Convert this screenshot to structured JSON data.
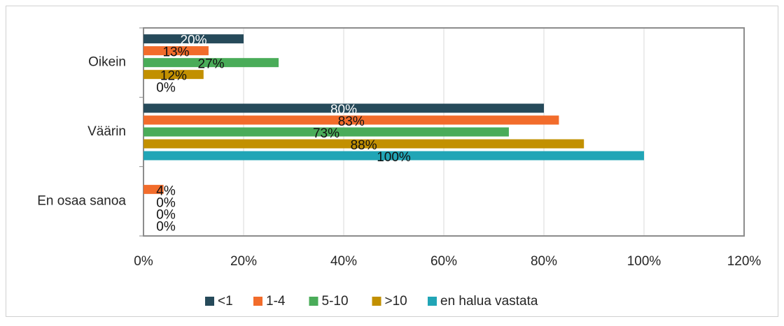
{
  "chart_data": {
    "type": "bar",
    "orientation": "horizontal",
    "categories": [
      "Oikein",
      "Väärin",
      "En osaa sanoa"
    ],
    "series": [
      {
        "name": "<1",
        "color": "#264a5a",
        "values": [
          20,
          80,
          null
        ],
        "value_labels": [
          "20%",
          "80%",
          null
        ]
      },
      {
        "name": "1-4",
        "color": "#f26c2b",
        "values": [
          13,
          83,
          4
        ],
        "value_labels": [
          "13%",
          "83%",
          "4%"
        ]
      },
      {
        "name": "5-10",
        "color": "#4aac59",
        "values": [
          27,
          73,
          0
        ],
        "value_labels": [
          "27%",
          "73%",
          "0%"
        ]
      },
      {
        "name": ">10",
        "color": "#c29000",
        "values": [
          12,
          88,
          0
        ],
        "value_labels": [
          "12%",
          "88%",
          "0%"
        ]
      },
      {
        "name": "en halua vastata",
        "color": "#21a5b6",
        "values": [
          0,
          100,
          0
        ],
        "value_labels": [
          "0%",
          "100%",
          "0%"
        ]
      }
    ],
    "xlim": [
      0,
      120
    ],
    "xticks": [
      {
        "value": 0,
        "label": "0%"
      },
      {
        "value": 20,
        "label": "20%"
      },
      {
        "value": 40,
        "label": "40%"
      },
      {
        "value": 60,
        "label": "60%"
      },
      {
        "value": 80,
        "label": "80%"
      },
      {
        "value": 100,
        "label": "100%"
      },
      {
        "value": 120,
        "label": "120%"
      }
    ],
    "grid": true,
    "legend": "bottom"
  }
}
